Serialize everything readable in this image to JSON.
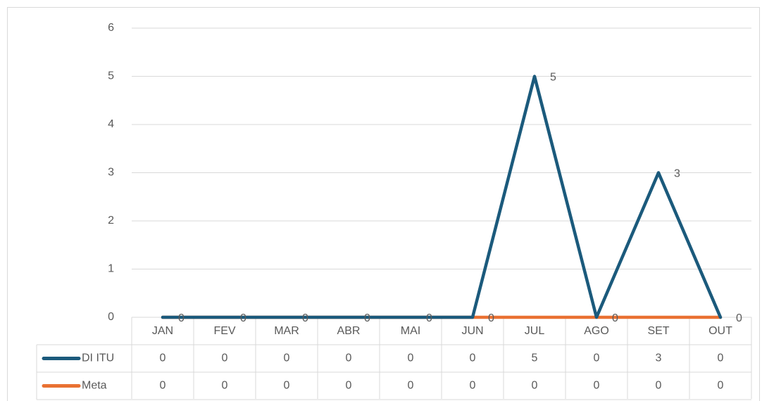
{
  "chart_data": {
    "type": "line",
    "categories": [
      "JAN",
      "FEV",
      "MAR",
      "ABR",
      "MAI",
      "JUN",
      "JUL",
      "AGO",
      "SET",
      "OUT"
    ],
    "series": [
      {
        "name": "DI ITU",
        "color": "#1b5a7c",
        "values": [
          0,
          0,
          0,
          0,
          0,
          0,
          5,
          0,
          3,
          0
        ]
      },
      {
        "name": "Meta",
        "color": "#e97132",
        "values": [
          0,
          0,
          0,
          0,
          0,
          0,
          0,
          0,
          0,
          0
        ]
      }
    ],
    "ylim": [
      0,
      6
    ],
    "yticks": [
      0,
      1,
      2,
      3,
      4,
      5,
      6
    ],
    "grid": true,
    "data_table": true
  }
}
